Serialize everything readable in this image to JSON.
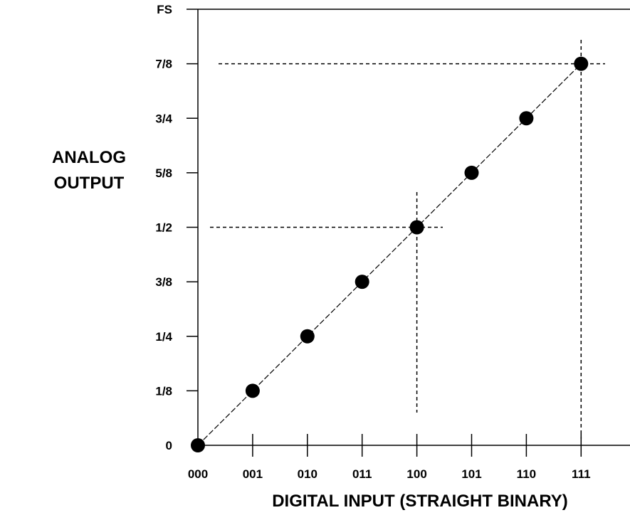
{
  "chart_data": {
    "type": "scatter",
    "xlabel": "DIGITAL INPUT (STRAIGHT BINARY)",
    "ylabel": [
      "ANALOG",
      "OUTPUT"
    ],
    "x_ticks": [
      "000",
      "001",
      "010",
      "011",
      "100",
      "101",
      "110",
      "111"
    ],
    "y_ticks": [
      "0",
      "1/8",
      "1/4",
      "3/8",
      "1/2",
      "5/8",
      "3/4",
      "7/8",
      "FS"
    ],
    "xlim": [
      0,
      8
    ],
    "ylim": [
      0,
      1
    ],
    "grid": false,
    "points": [
      {
        "x": "000",
        "y": 0
      },
      {
        "x": "001",
        "y": 0.125
      },
      {
        "x": "010",
        "y": 0.25
      },
      {
        "x": "011",
        "y": 0.375
      },
      {
        "x": "100",
        "y": 0.5
      },
      {
        "x": "101",
        "y": 0.625
      },
      {
        "x": "110",
        "y": 0.75
      },
      {
        "x": "111",
        "y": 0.875
      }
    ],
    "transfer_line": {
      "style": "dashed",
      "from": {
        "x": "000",
        "y": 0
      },
      "to": {
        "x": "111",
        "y": 0.875
      }
    },
    "reference_lines": [
      {
        "x": "100",
        "y": 0.5,
        "style": "dashed"
      },
      {
        "x": "111",
        "y": 0.875,
        "style": "dashed"
      }
    ],
    "colors": {
      "points": "#000000",
      "lines": "#000000",
      "background": "#ffffff"
    }
  }
}
